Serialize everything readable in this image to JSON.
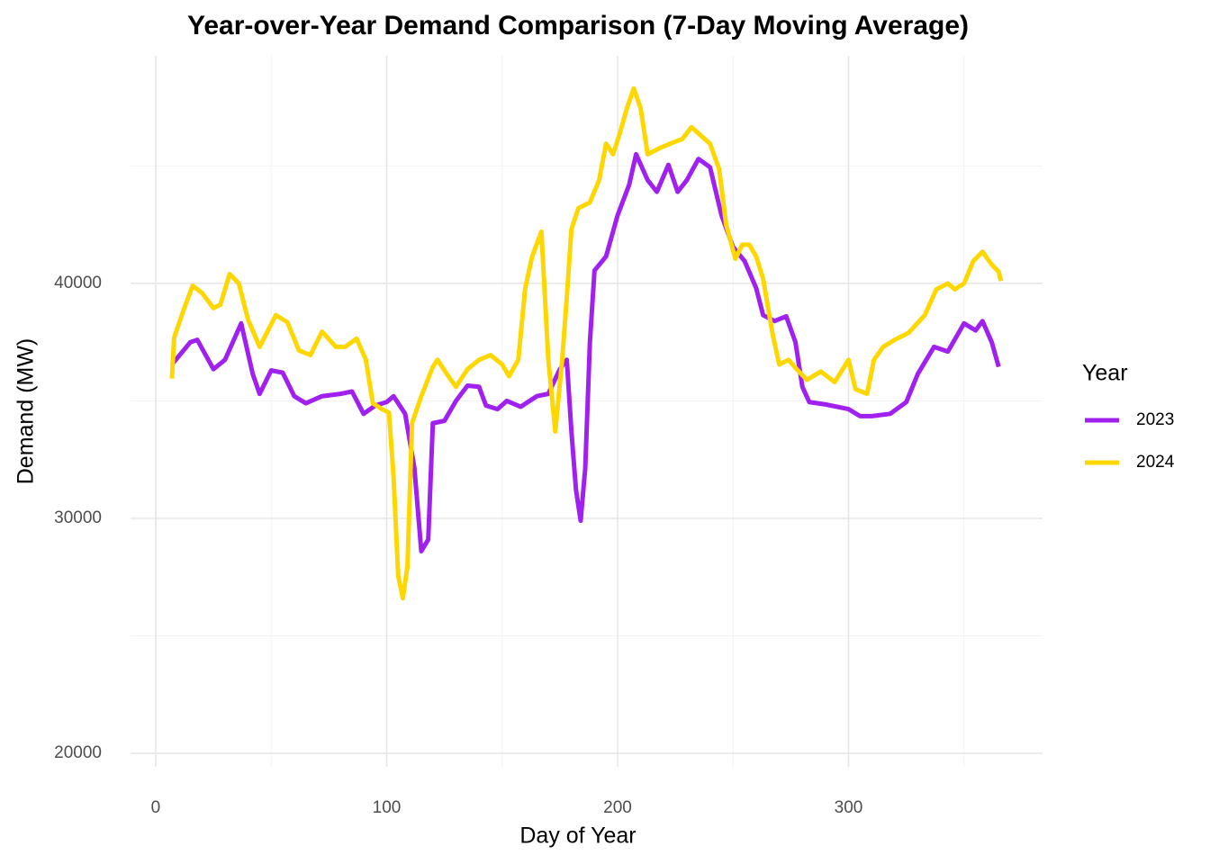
{
  "chart_data": {
    "type": "line",
    "title": "Year-over-Year Demand Comparison (7-Day Moving Average)",
    "x_label": "Day of Year",
    "y_label": "Demand (MW)",
    "legend_title": "Year",
    "legend_position": "right",
    "grid": true,
    "xlim": [
      -10.9,
      384
    ],
    "ylim": [
      19425,
      49690
    ],
    "xticks": [
      0,
      100,
      200,
      300
    ],
    "yticks": [
      20000,
      30000,
      40000
    ],
    "xminor": [
      50,
      150,
      250,
      350
    ],
    "yminor": [
      25000,
      35000,
      45000
    ],
    "series": [
      {
        "name": "2023",
        "color": "#a020f0",
        "x": [
          7,
          15,
          18,
          25,
          30,
          37,
          42,
          45,
          50,
          55,
          60,
          65,
          72,
          80,
          85,
          90,
          95,
          100,
          103,
          108,
          112,
          115,
          118,
          120,
          125,
          130,
          135,
          140,
          143,
          148,
          152,
          158,
          165,
          170,
          175,
          178,
          180,
          182,
          184,
          186,
          188,
          190,
          195,
          200,
          205,
          208,
          213,
          217,
          222,
          226,
          230,
          235,
          240,
          245,
          250,
          255,
          260,
          263,
          268,
          273,
          277,
          280,
          283,
          290,
          300,
          305,
          310,
          318,
          325,
          330,
          337,
          343,
          350,
          355,
          358,
          362,
          365
        ],
        "values": [
          36550,
          37500,
          37600,
          36350,
          36750,
          38300,
          36150,
          35300,
          36300,
          36200,
          35200,
          34900,
          35200,
          35300,
          35400,
          34450,
          34800,
          34950,
          35200,
          34450,
          32150,
          28600,
          29100,
          34050,
          34150,
          35000,
          35650,
          35600,
          34800,
          34650,
          35000,
          34750,
          35200,
          35300,
          36350,
          36750,
          33700,
          31200,
          29900,
          32150,
          37500,
          40550,
          41150,
          42900,
          44200,
          45500,
          44400,
          43900,
          45050,
          43900,
          44400,
          45300,
          44950,
          42900,
          41550,
          40950,
          39800,
          38650,
          38400,
          38600,
          37500,
          35600,
          34950,
          34850,
          34650,
          34350,
          34350,
          34450,
          34950,
          36150,
          37300,
          37100,
          38300,
          38000,
          38400,
          37500,
          36450
        ]
      },
      {
        "name": "2024",
        "color": "#ffd700",
        "x": [
          7,
          8,
          12,
          16,
          20,
          25,
          28,
          32,
          36,
          40,
          45,
          52,
          57,
          62,
          67,
          72,
          78,
          82,
          87,
          91,
          94,
          98,
          101,
          103,
          105,
          107,
          109,
          111,
          115,
          120,
          122,
          126,
          130,
          135,
          140,
          145,
          150,
          153,
          157,
          160,
          163,
          167,
          170,
          173,
          176,
          178,
          180,
          183,
          188,
          192,
          195,
          198,
          201,
          204,
          207,
          210,
          213,
          218,
          224,
          228,
          232,
          236,
          240,
          244,
          247,
          251,
          254,
          257,
          260,
          263,
          267,
          270,
          274,
          278,
          282,
          288,
          294,
          300,
          303,
          308,
          311,
          315,
          320,
          326,
          333,
          338,
          343,
          346,
          350,
          354,
          358,
          362,
          365,
          366
        ],
        "values": [
          35950,
          37700,
          38850,
          39900,
          39600,
          38950,
          39100,
          40400,
          40000,
          38450,
          37300,
          38650,
          38350,
          37150,
          36950,
          37950,
          37300,
          37300,
          37650,
          36750,
          34900,
          34650,
          34500,
          31750,
          27550,
          26600,
          27950,
          34050,
          35200,
          36450,
          36750,
          36150,
          35600,
          36350,
          36750,
          36950,
          36550,
          36050,
          36750,
          39800,
          41150,
          42200,
          36750,
          33700,
          36750,
          39400,
          42300,
          43200,
          43450,
          44400,
          45950,
          45500,
          46400,
          47450,
          48300,
          47450,
          45500,
          45750,
          46000,
          46150,
          46650,
          46300,
          45950,
          44850,
          42500,
          41050,
          41650,
          41650,
          41150,
          40200,
          37900,
          36550,
          36750,
          36300,
          35900,
          36250,
          35800,
          36750,
          35500,
          35300,
          36750,
          37300,
          37600,
          37900,
          38650,
          39750,
          40000,
          39750,
          40000,
          40950,
          41350,
          40800,
          40500,
          40100
        ]
      }
    ]
  }
}
